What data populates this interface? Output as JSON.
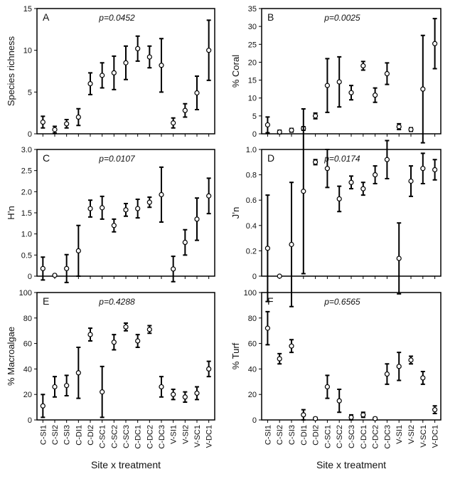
{
  "chart_data": [
    {
      "type": "errorbar",
      "panel": "A",
      "annotation": "p=0.0452",
      "ylabel": "Species richness",
      "ylim": [
        0,
        15
      ],
      "yticks": [
        0,
        5,
        10,
        15
      ],
      "values": [
        1.4,
        0.5,
        1.2,
        2.0,
        6.0,
        7.0,
        7.3,
        8.5,
        10.2,
        9.2,
        8.2,
        1.3,
        2.8,
        4.9,
        10.0
      ],
      "errors": [
        0.7,
        0.4,
        0.5,
        1.0,
        1.3,
        1.5,
        2.0,
        2.0,
        1.5,
        1.3,
        3.2,
        0.6,
        0.8,
        2.0,
        3.6
      ]
    },
    {
      "type": "errorbar",
      "panel": "B",
      "annotation": "p=0.0025",
      "ylabel": "% Coral",
      "ylim": [
        0,
        35
      ],
      "yticks": [
        0,
        5,
        10,
        15,
        20,
        25,
        30,
        35
      ],
      "values": [
        2.5,
        0.5,
        1.0,
        1.5,
        5.0,
        13.5,
        14.5,
        11.5,
        19.0,
        10.8,
        16.8,
        2.0,
        1.2,
        12.5,
        25.2
      ],
      "errors": [
        2.2,
        0.5,
        0.5,
        0.5,
        0.8,
        7.5,
        7.0,
        2.0,
        1.2,
        2.0,
        3.0,
        0.8,
        0.5,
        15.0,
        7.0
      ]
    },
    {
      "type": "errorbar",
      "panel": "C",
      "annotation": "p=0.0107",
      "ylabel": "H’n",
      "ylim": [
        0,
        3
      ],
      "yticks": [
        0,
        0.5,
        {
          "value": 1,
          "label": "1.0"
        },
        1.5,
        {
          "value": 2,
          "label": "2.0"
        },
        2.5,
        {
          "value": 3,
          "label": "3.0"
        }
      ],
      "values": [
        0.18,
        0.02,
        0.18,
        0.6,
        1.6,
        1.62,
        1.2,
        1.57,
        1.6,
        1.75,
        1.93,
        0.17,
        0.8,
        1.35,
        1.9
      ],
      "errors": [
        0.27,
        0.02,
        0.33,
        0.6,
        0.2,
        0.27,
        0.15,
        0.15,
        0.22,
        0.12,
        0.65,
        0.3,
        0.3,
        0.5,
        0.42
      ]
    },
    {
      "type": "errorbar",
      "panel": "D",
      "annotation": "p=0.0174",
      "ylabel": "J’n",
      "ylim": [
        0,
        1
      ],
      "yticks": [
        0,
        0.2,
        0.4,
        0.6,
        0.8,
        {
          "value": 1,
          "label": "1.0"
        }
      ],
      "values": [
        0.22,
        0.0,
        0.25,
        0.67,
        0.9,
        0.85,
        0.61,
        0.74,
        0.69,
        0.8,
        0.92,
        0.14,
        0.75,
        0.85,
        0.84
      ],
      "errors": [
        0.42,
        0.0,
        0.49,
        0.65,
        0.02,
        0.15,
        0.1,
        0.05,
        0.05,
        0.07,
        0.15,
        0.28,
        0.12,
        0.12,
        0.08
      ]
    },
    {
      "type": "errorbar",
      "panel": "E",
      "annotation": "p=0.4288",
      "ylabel": "% Macroalgae",
      "xlabel": "Site x treatment",
      "ylim": [
        0,
        100
      ],
      "yticks": [
        0,
        20,
        40,
        60,
        80,
        100
      ],
      "categories": [
        "C-SI1",
        "C-SI2",
        "C-SI3",
        "C-DI1",
        "C-DI2",
        "C-SC1",
        "C-SC2",
        "C-SC3",
        "C-DC1",
        "C-DC2",
        "C-DC3",
        "V-SI1",
        "V-SI2",
        "V-SC1",
        "V-DC1"
      ],
      "values": [
        11,
        26,
        27,
        37,
        67,
        22,
        61,
        73,
        62,
        71,
        26,
        20,
        18,
        21,
        40
      ],
      "errors": [
        9,
        8,
        8,
        20,
        5,
        20,
        6,
        3,
        5,
        3,
        8,
        4,
        4,
        5,
        6
      ]
    },
    {
      "type": "errorbar",
      "panel": "F",
      "annotation": "p=0.6565",
      "ylabel": "% Turf",
      "xlabel": "Site x treatment",
      "ylim": [
        0,
        100
      ],
      "yticks": [
        0,
        20,
        40,
        60,
        80,
        100
      ],
      "categories": [
        "C-SI1",
        "C-SI2",
        "C-SI3",
        "C-DI1",
        "C-DI2",
        "C-SC1",
        "C-SC2",
        "C-SC3",
        "C-DC1",
        "C-DC2",
        "C-DC3",
        "V-SI1",
        "V-SI2",
        "V-SC1",
        "V-DC1"
      ],
      "values": [
        72,
        48,
        58,
        4,
        1,
        26,
        15,
        2,
        4,
        1,
        36,
        42,
        47,
        33,
        8
      ],
      "errors": [
        13,
        4,
        5,
        4,
        1,
        9,
        9,
        2,
        2,
        1,
        8,
        11,
        3,
        5,
        3
      ]
    }
  ]
}
